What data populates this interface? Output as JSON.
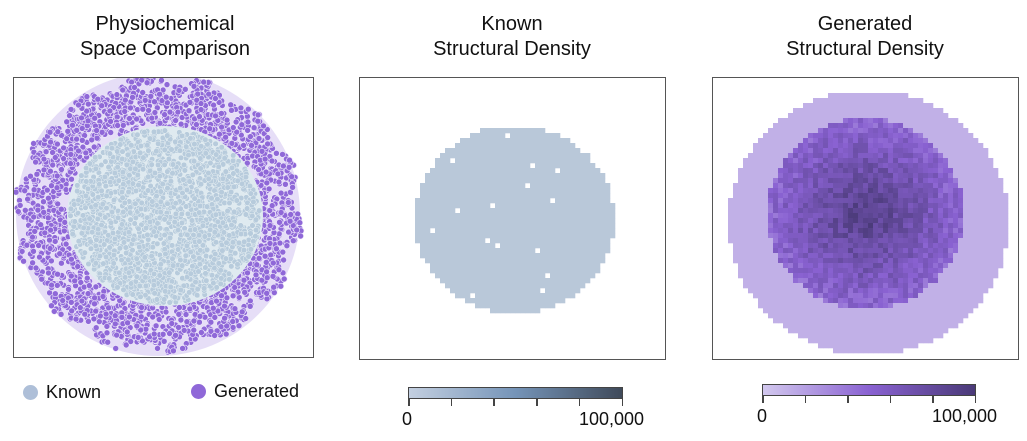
{
  "chart_data": [
    {
      "type": "scatter",
      "title": "Physiochemical Space Comparison",
      "title_lines": [
        "Physiochemical",
        "Space Comparison"
      ],
      "series": [
        {
          "name": "Known",
          "color": "#b7cbdc",
          "distribution": "dense central disc"
        },
        {
          "name": "Generated",
          "color": "#8f68d8",
          "distribution": "ring surrounding the known region"
        }
      ],
      "legend": "bottom",
      "grid": false
    },
    {
      "type": "heatmap",
      "title": "Known Structural Density",
      "title_lines": [
        "Known",
        "Structural Density"
      ],
      "colorbar": {
        "min": 0,
        "max": 100000,
        "tick_labels": [
          "0",
          "100,000"
        ],
        "ticks": 6,
        "colors": [
          "#c3cfe0",
          "#7594b8",
          "#3f4a5a"
        ]
      },
      "grid": false
    },
    {
      "type": "heatmap",
      "title": "Generated Structural Density",
      "title_lines": [
        "Generated",
        "Structural Density"
      ],
      "colorbar": {
        "min": 0,
        "max": 100000,
        "tick_labels": [
          "0",
          "100,000"
        ],
        "ticks": 6,
        "colors": [
          "#d2c8ee",
          "#8a62d2",
          "#4a3a78"
        ]
      },
      "grid": false
    }
  ]
}
